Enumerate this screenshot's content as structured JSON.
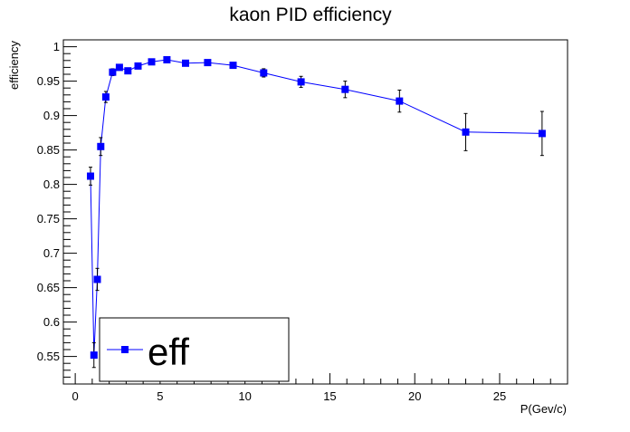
{
  "chart_data": {
    "type": "line",
    "title": "kaon PID efficiency",
    "xlabel": "P(Gev/c)",
    "ylabel": "efficiency",
    "xlim": [
      -0.7,
      29.0
    ],
    "ylim": [
      0.51,
      1.01
    ],
    "x_ticks": [
      0,
      5,
      10,
      15,
      20,
      25
    ],
    "y_ticks": [
      0.55,
      0.6,
      0.65,
      0.7,
      0.75,
      0.8,
      0.85,
      0.9,
      0.95,
      1
    ],
    "x_tick_labels": [
      "0",
      "5",
      "10",
      "15",
      "20",
      "25"
    ],
    "y_tick_labels": [
      "0.55",
      "0.6",
      "0.65",
      "0.7",
      "0.75",
      "0.8",
      "0.85",
      "0.9",
      "0.95",
      "1"
    ],
    "grid": false,
    "legend_position": "bottom-left",
    "color": "#0000ff",
    "series": [
      {
        "name": "eff",
        "x": [
          0.9,
          1.1,
          1.3,
          1.5,
          1.8,
          2.2,
          2.6,
          3.1,
          3.7,
          4.5,
          5.4,
          6.5,
          7.8,
          9.3,
          11.1,
          13.3,
          15.9,
          19.1,
          23.0,
          27.5
        ],
        "y": [
          0.812,
          0.552,
          0.662,
          0.855,
          0.927,
          0.963,
          0.97,
          0.965,
          0.972,
          0.978,
          0.981,
          0.976,
          0.977,
          0.973,
          0.962,
          0.949,
          0.938,
          0.921,
          0.876,
          0.874
        ],
        "err": [
          0.013,
          0.018,
          0.016,
          0.013,
          0.008,
          0.005,
          0.004,
          0.004,
          0.003,
          0.003,
          0.003,
          0.003,
          0.003,
          0.004,
          0.006,
          0.008,
          0.012,
          0.016,
          0.027,
          0.032
        ]
      }
    ]
  }
}
